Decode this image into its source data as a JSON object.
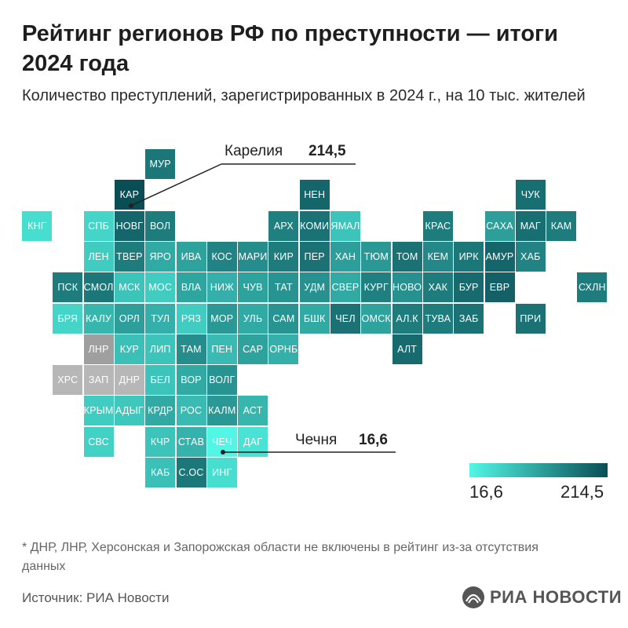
{
  "title": "Рейтинг регионов РФ по преступности — итоги 2024 года",
  "subtitle": "Количество преступлений, зарегистрированных в 2024 г., на 10 тыс. жителей",
  "callouts": {
    "top": {
      "label": "Карелия",
      "value": "214,5"
    },
    "bottom": {
      "label": "Чечня",
      "value": "16,6"
    }
  },
  "legend": {
    "min": "16,6",
    "max": "214,5",
    "color_low": "#52f6e5",
    "color_high": "#0a4d55",
    "no_data_colors": [
      "#9f9f9f",
      "#b7b7b7"
    ]
  },
  "footnote": "* ДНР, ЛНР, Херсонская и Запорожская области не включены в рейтинг из-за отсутствия данных",
  "source": "Источник: РИА Новости",
  "logo": {
    "text": "РИА НОВОСТИ",
    "icon": "ria-logo-icon"
  },
  "chart_data": {
    "type": "heatmap",
    "rows": [
      [
        {
          "c": 4,
          "l": "МУР",
          "v": 0.75
        }
      ],
      [
        {
          "c": 3,
          "l": "КАР",
          "v": 1
        },
        {
          "c": 9,
          "l": "НЕН",
          "v": 0.85
        },
        {
          "c": 16,
          "l": "ЧУК",
          "v": 0.8
        }
      ],
      [
        {
          "c": 0,
          "l": "КНГ",
          "v": 0.15
        },
        {
          "c": 2,
          "l": "СПБ",
          "v": 0.2
        },
        {
          "c": 3,
          "l": "НОВГ",
          "v": 0.85
        },
        {
          "c": 4,
          "l": "ВОЛ",
          "v": 0.72
        },
        {
          "c": 8,
          "l": "АРХ",
          "v": 0.7
        },
        {
          "c": 9,
          "l": "КОМИ",
          "v": 0.78
        },
        {
          "c": 10,
          "l": "ЯМАЛ",
          "v": 0.3
        },
        {
          "c": 13,
          "l": "КРАС",
          "v": 0.72
        },
        {
          "c": 15,
          "l": "САХА",
          "v": 0.52
        },
        {
          "c": 16,
          "l": "МАГ",
          "v": 0.8
        },
        {
          "c": 17,
          "l": "КАМ",
          "v": 0.72
        }
      ],
      [
        {
          "c": 2,
          "l": "ЛЕН",
          "v": 0.25
        },
        {
          "c": 3,
          "l": "ТВЕР",
          "v": 0.72
        },
        {
          "c": 4,
          "l": "ЯРО",
          "v": 0.45
        },
        {
          "c": 5,
          "l": "ИВА",
          "v": 0.5
        },
        {
          "c": 6,
          "l": "КОС",
          "v": 0.68
        },
        {
          "c": 7,
          "l": "МАРИ",
          "v": 0.62
        },
        {
          "c": 8,
          "l": "КИР",
          "v": 0.72
        },
        {
          "c": 9,
          "l": "ПЕР",
          "v": 0.78
        },
        {
          "c": 10,
          "l": "ХАН",
          "v": 0.52
        },
        {
          "c": 11,
          "l": "ТЮМ",
          "v": 0.55
        },
        {
          "c": 12,
          "l": "ТОМ",
          "v": 0.78
        },
        {
          "c": 13,
          "l": "КЕМ",
          "v": 0.65
        },
        {
          "c": 14,
          "l": "ИРК",
          "v": 0.75
        },
        {
          "c": 15,
          "l": "АМУР",
          "v": 0.85
        },
        {
          "c": 16,
          "l": "ХАБ",
          "v": 0.68
        }
      ],
      [
        {
          "c": 1,
          "l": "ПСК",
          "v": 0.72
        },
        {
          "c": 2,
          "l": "СМОЛ",
          "v": 0.75
        },
        {
          "c": 3,
          "l": "МСК",
          "v": 0.3
        },
        {
          "c": 4,
          "l": "МОС",
          "v": 0.25
        },
        {
          "c": 5,
          "l": "ВЛА",
          "v": 0.48
        },
        {
          "c": 6,
          "l": "НИЖ",
          "v": 0.42
        },
        {
          "c": 7,
          "l": "ЧУВ",
          "v": 0.5
        },
        {
          "c": 8,
          "l": "ТАТ",
          "v": 0.58
        },
        {
          "c": 9,
          "l": "УДМ",
          "v": 0.6
        },
        {
          "c": 10,
          "l": "СВЕР",
          "v": 0.45
        },
        {
          "c": 11,
          "l": "КУРГ",
          "v": 0.7
        },
        {
          "c": 12,
          "l": "НОВО",
          "v": 0.6
        },
        {
          "c": 13,
          "l": "ХАК",
          "v": 0.72
        },
        {
          "c": 14,
          "l": "БУР",
          "v": 0.82
        },
        {
          "c": 15,
          "l": "ЕВР",
          "v": 0.88
        },
        {
          "c": 18,
          "l": "СХЛН",
          "v": 0.72
        }
      ],
      [
        {
          "c": 1,
          "l": "БРЯ",
          "v": 0.2
        },
        {
          "c": 2,
          "l": "КАЛУ",
          "v": 0.38
        },
        {
          "c": 3,
          "l": "ОРЛ",
          "v": 0.52
        },
        {
          "c": 4,
          "l": "ТУЛ",
          "v": 0.42
        },
        {
          "c": 5,
          "l": "РЯЗ",
          "v": 0.25
        },
        {
          "c": 6,
          "l": "МОР",
          "v": 0.55
        },
        {
          "c": 7,
          "l": "УЛЬ",
          "v": 0.45
        },
        {
          "c": 8,
          "l": "САМ",
          "v": 0.58
        },
        {
          "c": 9,
          "l": "БШК",
          "v": 0.45
        },
        {
          "c": 10,
          "l": "ЧЕЛ",
          "v": 0.78
        },
        {
          "c": 11,
          "l": "ОМСК",
          "v": 0.5
        },
        {
          "c": 12,
          "l": "АЛ.К",
          "v": 0.72
        },
        {
          "c": 13,
          "l": "ТУВА",
          "v": 0.72
        },
        {
          "c": 14,
          "l": "ЗАБ",
          "v": 0.78
        },
        {
          "c": 16,
          "l": "ПРИ",
          "v": 0.78
        }
      ],
      [
        {
          "c": 2,
          "l": "ЛНР",
          "v": null,
          "nd": "light"
        },
        {
          "c": 3,
          "l": "КУР",
          "v": 0.32
        },
        {
          "c": 4,
          "l": "ЛИП",
          "v": 0.3
        },
        {
          "c": 5,
          "l": "ТАМ",
          "v": 0.62
        },
        {
          "c": 6,
          "l": "ПЕН",
          "v": 0.35
        },
        {
          "c": 7,
          "l": "САР",
          "v": 0.5
        },
        {
          "c": 8,
          "l": "ОРНБ",
          "v": 0.42
        },
        {
          "c": 12,
          "l": "АЛТ",
          "v": 0.82
        }
      ],
      [
        {
          "c": 1,
          "l": "ХРС",
          "v": null,
          "nd": "dark"
        },
        {
          "c": 2,
          "l": "ЗАП",
          "v": null,
          "nd": "dark"
        },
        {
          "c": 3,
          "l": "ДНР",
          "v": null,
          "nd": "dark"
        },
        {
          "c": 4,
          "l": "БЕЛ",
          "v": 0.3
        },
        {
          "c": 5,
          "l": "ВОР",
          "v": 0.45
        },
        {
          "c": 6,
          "l": "ВОЛГ",
          "v": 0.58
        }
      ],
      [
        {
          "c": 2,
          "l": "КРЫМ",
          "v": 0.25
        },
        {
          "c": 3,
          "l": "АДЫГ",
          "v": 0.28
        },
        {
          "c": 4,
          "l": "КРДР",
          "v": 0.45
        },
        {
          "c": 5,
          "l": "РОС",
          "v": 0.35
        },
        {
          "c": 6,
          "l": "КАЛМ",
          "v": 0.55
        },
        {
          "c": 7,
          "l": "АСТ",
          "v": 0.38
        }
      ],
      [
        {
          "c": 2,
          "l": "СВС",
          "v": 0.22
        },
        {
          "c": 4,
          "l": "КЧР",
          "v": 0.3
        },
        {
          "c": 5,
          "l": "СТАВ",
          "v": 0.4
        },
        {
          "c": 6,
          "l": "ЧЕЧ",
          "v": 0
        },
        {
          "c": 7,
          "l": "ДАГ",
          "v": 0.12
        }
      ],
      [
        {
          "c": 4,
          "l": "КАБ",
          "v": 0.32
        },
        {
          "c": 5,
          "l": "С.ОС",
          "v": 0.75
        },
        {
          "c": 6,
          "l": "ИНГ",
          "v": 0.15
        }
      ]
    ]
  }
}
